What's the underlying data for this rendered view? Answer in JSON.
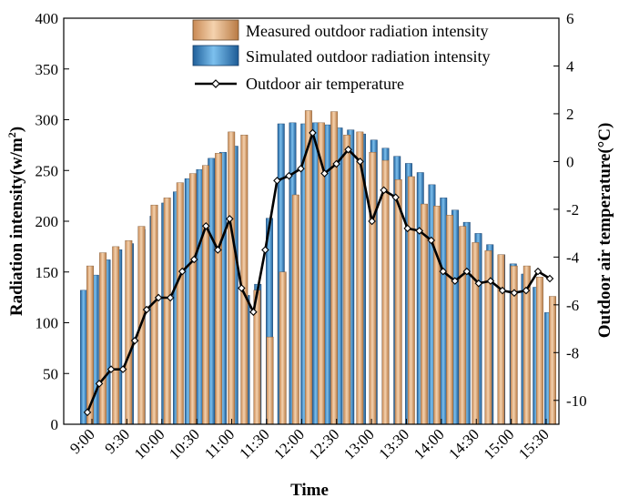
{
  "chart_data": {
    "type": "bar",
    "xlabel": "Time",
    "ylabel": "Radiation intensity(w/m",
    "ylabel_sup": "2",
    "ylabel_close": ")",
    "y2label": "Outdoor air temperature(°C)",
    "ylim": [
      0,
      400
    ],
    "yticks": [
      "0",
      "50",
      "100",
      "150",
      "200",
      "250",
      "300",
      "350",
      "400"
    ],
    "y2lim": [
      -11,
      6
    ],
    "y2ticks": [
      "-10",
      "-8",
      "-6",
      "-4",
      "-2",
      "0",
      "2",
      "4",
      "6"
    ],
    "x_tick_labels": [
      "9:00",
      "9:30",
      "10:00",
      "10:30",
      "11:00",
      "11:30",
      "12:00",
      "12:30",
      "13:00",
      "13:30",
      "14:00",
      "14:30",
      "15:00",
      "15:30"
    ],
    "legend_position": "top-right",
    "colors": {
      "measured": "#e8b88a",
      "simulated": "#4f9fd6",
      "temperature": "#000000"
    },
    "series": [
      {
        "name": "Measured outdoor radiation intensity",
        "kind": "bar",
        "values": [
          156,
          169,
          175,
          181,
          195,
          216,
          223,
          238,
          247,
          255,
          267,
          288,
          285,
          132,
          86,
          150,
          226,
          309,
          297,
          308,
          285,
          288,
          268,
          260,
          241,
          244,
          217,
          215,
          206,
          195,
          179,
          171,
          167,
          156,
          156,
          145,
          126
        ]
      },
      {
        "name": "Simulated outdoor radiation intensity",
        "kind": "bar",
        "values": [
          132,
          147,
          162,
          172,
          178,
          192,
          205,
          218,
          229,
          242,
          251,
          262,
          268,
          274,
          127,
          138,
          203,
          296,
          297,
          296,
          297,
          295,
          292,
          290,
          286,
          280,
          272,
          264,
          257,
          248,
          236,
          223,
          211,
          199,
          188,
          177,
          167,
          158,
          148,
          135,
          110
        ]
      },
      {
        "name": "Outdoor air temperature",
        "kind": "line",
        "values": [
          -10.5,
          -9.3,
          -8.7,
          -8.7,
          -7.5,
          -6.2,
          -5.7,
          -5.7,
          -4.6,
          -4.1,
          -2.7,
          -3.7,
          -2.4,
          -5.3,
          -6.3,
          -3.7,
          -0.8,
          -0.6,
          -0.3,
          1.2,
          -0.5,
          -0.1,
          0.5,
          0,
          -2.5,
          -1.2,
          -1.5,
          -2.8,
          -2.9,
          -3.3,
          -4.6,
          -5.0,
          -4.6,
          -5.1,
          -5.0,
          -5.4,
          -5.5,
          -5.4,
          -4.6,
          -4.9
        ]
      }
    ]
  }
}
